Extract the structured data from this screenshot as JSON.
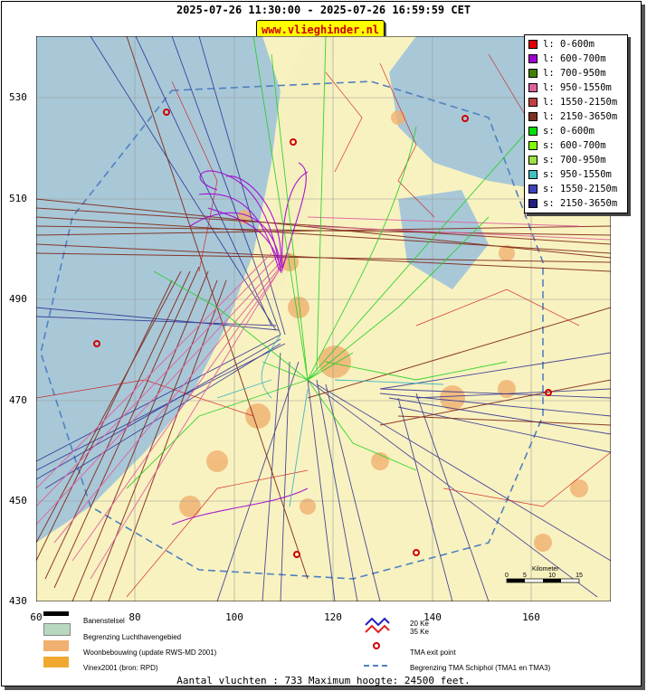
{
  "header": {
    "time_range": "2025-07-26 11:30:00 - 2025-07-26 16:59:59 CET",
    "site": "www.vlieghinder.nl"
  },
  "axes": {
    "y_ticks": [
      "530",
      "510",
      "490",
      "470",
      "450",
      "430"
    ],
    "x_ticks": [
      "60",
      "80",
      "100",
      "120",
      "140",
      "160"
    ]
  },
  "legend": [
    {
      "label": "l: 0-600m",
      "color": "#e00000"
    },
    {
      "label": "l: 600-700m",
      "color": "#a000d0"
    },
    {
      "label": "l: 700-950m",
      "color": "#408000"
    },
    {
      "label": "l: 950-1550m",
      "color": "#e060a0"
    },
    {
      "label": "l: 1550-2150m",
      "color": "#c04040"
    },
    {
      "label": "l: 2150-3650m",
      "color": "#803020"
    },
    {
      "label": "s: 0-600m",
      "color": "#00e000"
    },
    {
      "label": "s: 600-700m",
      "color": "#80ff00"
    },
    {
      "label": "s: 700-950m",
      "color": "#a0e040"
    },
    {
      "label": "s: 950-1550m",
      "color": "#40c0c0"
    },
    {
      "label": "s: 1550-2150m",
      "color": "#4040c0"
    },
    {
      "label": "s: 2150-3650m",
      "color": "#202080"
    }
  ],
  "map": {
    "scale_label": "Kilometer",
    "scale_ticks": [
      "0",
      "5",
      "10",
      "15"
    ]
  },
  "bottom_legend": {
    "runways": "Banenstelsel",
    "airport_boundary": "Begrenzing Luchthavengebied",
    "housing": "Woonbebouwing (update RWS-MD 2001)",
    "vinex": "Vinex2001 (bron: RPD)",
    "ke20": "20 Ke",
    "ke35": "35 Ke",
    "tma_exit": "TMA exit point",
    "tma_boundary": "Begrenzing TMA Schiphol  (TMA1 en TMA3)"
  },
  "footer": "Aantal vluchten : 733 Maximum hoogte: 24500 feet."
}
